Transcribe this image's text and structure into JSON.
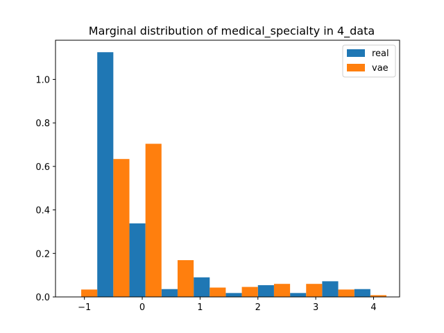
{
  "chart_data": {
    "type": "bar",
    "title": "Marginal distribution of medical_specialty in 4_data",
    "xlabel": "",
    "ylabel": "",
    "xlim": [
      -1.5,
      4.45
    ],
    "ylim": [
      0,
      1.18
    ],
    "xticks": [
      -1,
      0,
      1,
      2,
      3,
      4
    ],
    "xtick_labels": [
      "−1",
      "0",
      "1",
      "2",
      "3",
      "4"
    ],
    "yticks": [
      0.0,
      0.2,
      0.4,
      0.6,
      0.8,
      1.0
    ],
    "ytick_labels": [
      "0.0",
      "0.2",
      "0.4",
      "0.6",
      "0.8",
      "1.0"
    ],
    "bin_edges": [
      -1.333,
      -0.778,
      -0.222,
      0.333,
      0.889,
      1.444,
      2.0,
      2.556,
      3.111,
      3.667,
      4.222
    ],
    "legend_position": "top-right",
    "grid": false,
    "series": [
      {
        "name": "real",
        "color": "#1f77b4",
        "values": [
          0.0,
          1.125,
          0.338,
          0.036,
          0.09,
          0.018,
          0.054,
          0.018,
          0.072,
          0.036
        ]
      },
      {
        "name": "vae",
        "color": "#ff7f0e",
        "values": [
          0.034,
          0.634,
          0.704,
          0.169,
          0.043,
          0.046,
          0.06,
          0.06,
          0.034,
          0.008
        ]
      }
    ]
  }
}
